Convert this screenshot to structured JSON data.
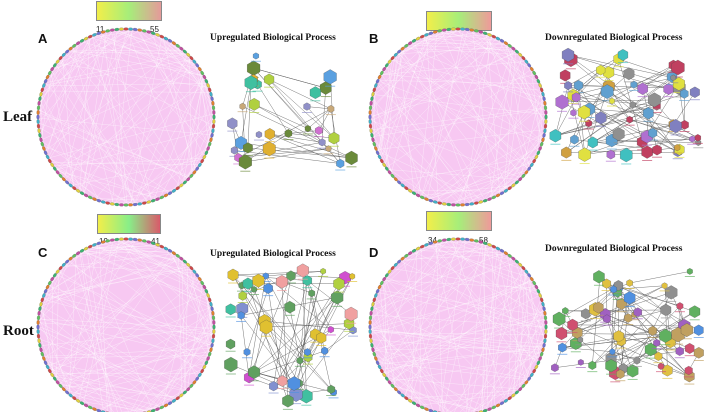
{
  "rows": {
    "leaf_label": "Leaf",
    "root_label": "Root"
  },
  "panels": [
    {
      "letter": "A",
      "title": "Upregulated Biological Process",
      "min": "11",
      "max": "55",
      "colors": [
        "#f2ee4a",
        "#a6ee7a",
        "#e59a9a"
      ]
    },
    {
      "letter": "B",
      "title": "Downregulated Biological Process",
      "min": "6",
      "max": "81",
      "colors": [
        "#f2ee4a",
        "#a6ee7a",
        "#ef9a9a"
      ]
    },
    {
      "letter": "C",
      "title": "Upregulated Biological Process",
      "min": "19",
      "max": "41",
      "colors": [
        "#f2ee4a",
        "#88ee88",
        "#d95a6a"
      ]
    },
    {
      "letter": "D",
      "title": "Downregulated Biological Process",
      "min": "34",
      "max": "58",
      "colors": [
        "#f2ee4a",
        "#a6ee7a",
        "#ef9a9a"
      ]
    }
  ],
  "style": {
    "circle_fill": "#f7c8f2",
    "edge_color": "#ffffff"
  }
}
